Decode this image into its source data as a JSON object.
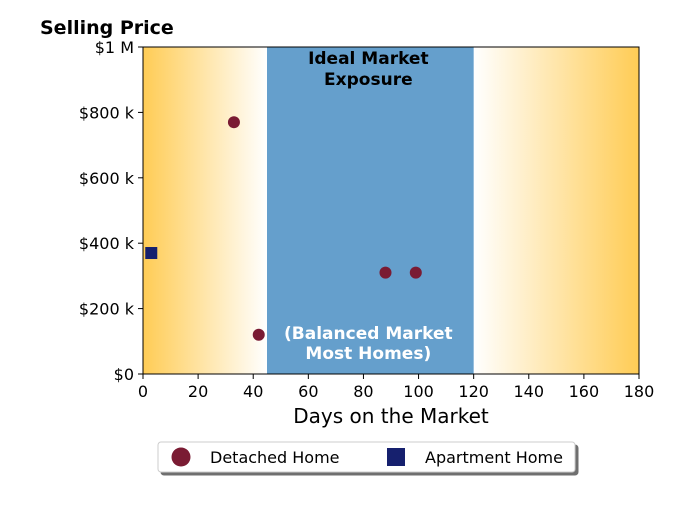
{
  "chart_data": {
    "type": "scatter",
    "title": "Selling Price",
    "xlabel": "Days on the Market",
    "ylabel": "",
    "xlim": [
      0,
      180
    ],
    "ylim": [
      0,
      1000000
    ],
    "x_ticks": [
      0,
      20,
      40,
      60,
      80,
      100,
      120,
      140,
      160,
      180
    ],
    "y_ticks": [
      {
        "value": 0,
        "label": "$0"
      },
      {
        "value": 200000,
        "label": "$200 k"
      },
      {
        "value": 400000,
        "label": "$400 k"
      },
      {
        "value": 600000,
        "label": "$600 k"
      },
      {
        "value": 800000,
        "label": "$800 k"
      },
      {
        "value": 1000000,
        "label": "$1 M"
      }
    ],
    "band": {
      "x_start": 45,
      "x_end": 120,
      "color": "#659fcc",
      "title_lines": [
        "Ideal Market",
        "Exposure"
      ],
      "subtitle_lines": [
        "(Balanced Market",
        "Most Homes)"
      ]
    },
    "background_gradient": {
      "edge_color": "#ffcc55",
      "center_color": "#ffffff"
    },
    "grid": false,
    "legend_position": "bottom-center",
    "series": [
      {
        "name": "Detached Home",
        "marker": "circle",
        "color": "#7a1b33",
        "points": [
          {
            "x": 33,
            "y": 770000
          },
          {
            "x": 42,
            "y": 120000
          },
          {
            "x": 88,
            "y": 310000
          },
          {
            "x": 99,
            "y": 310000
          }
        ]
      },
      {
        "name": "Apartment Home",
        "marker": "square",
        "color": "#16206e",
        "points": [
          {
            "x": 3,
            "y": 370000
          }
        ]
      }
    ]
  }
}
